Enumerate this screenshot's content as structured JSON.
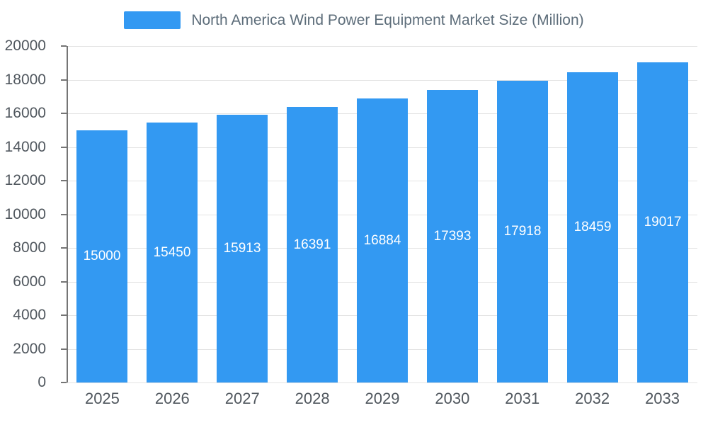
{
  "legend": {
    "label": "North America Wind Power Equipment Market Size (Million)"
  },
  "chart_data": {
    "type": "bar",
    "title": "North America Wind Power Equipment Market Size (Million)",
    "categories": [
      "2025",
      "2026",
      "2027",
      "2028",
      "2029",
      "2030",
      "2031",
      "2032",
      "2033"
    ],
    "values": [
      15000,
      15450,
      15913,
      16391,
      16884,
      17393,
      17918,
      18459,
      19017
    ],
    "xlabel": "",
    "ylabel": "",
    "ylim": [
      0,
      20000
    ],
    "ytick_step": 2000,
    "grid": true,
    "legend_position": "top",
    "bar_color": "#3399f2",
    "value_label_color": "#ffffff",
    "axis_text_color": "#50575e",
    "grid_color": "#e3e3e3"
  }
}
